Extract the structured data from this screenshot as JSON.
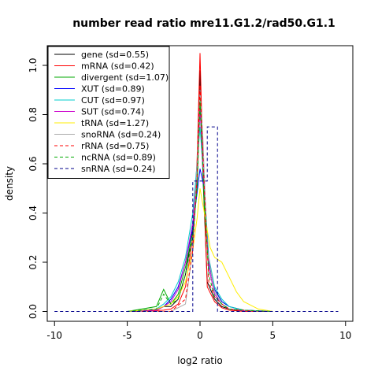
{
  "chart_data": {
    "type": "line",
    "title": "number read ratio mre11.G1.2/rad50.G1.1",
    "xlabel": "log2 ratio",
    "ylabel": "density",
    "xlim": [
      -10.5,
      10.5
    ],
    "ylim": [
      -0.04,
      1.08
    ],
    "x_ticks": [
      -10,
      -5,
      0,
      5,
      10
    ],
    "y_ticks": [
      0.0,
      0.2,
      0.4,
      0.6,
      0.8,
      1.0
    ],
    "x_tick_labels": [
      "-10",
      "-5",
      "0",
      "5",
      "10"
    ],
    "y_tick_labels": [
      "0.0",
      "0.2",
      "0.4",
      "0.6",
      "0.8",
      "1.0"
    ],
    "grid": false,
    "legend_position": "top-left",
    "series": [
      {
        "name": "gene (sd=0.55)",
        "color": "#000000",
        "dash": "solid",
        "x": [
          -4.5,
          -3.0,
          -2.5,
          -2.0,
          -1.5,
          -1.0,
          -0.5,
          -0.2,
          0.0,
          0.2,
          0.5,
          1.0,
          1.5,
          2.0,
          3.0,
          4.5
        ],
        "y": [
          0.0,
          0.005,
          0.02,
          0.02,
          0.05,
          0.15,
          0.33,
          0.55,
          0.98,
          0.55,
          0.12,
          0.05,
          0.02,
          0.01,
          0.0,
          0.0
        ]
      },
      {
        "name": "mRNA (sd=0.42)",
        "color": "#ff0000",
        "dash": "solid",
        "x": [
          -4.0,
          -2.5,
          -2.0,
          -1.5,
          -1.0,
          -0.5,
          -0.2,
          0.0,
          0.2,
          0.5,
          1.0,
          1.5,
          2.0,
          3.0,
          4.0
        ],
        "y": [
          0.0,
          0.005,
          0.01,
          0.03,
          0.1,
          0.3,
          0.62,
          1.05,
          0.6,
          0.1,
          0.04,
          0.015,
          0.005,
          0.0,
          0.0
        ]
      },
      {
        "name": "divergent (sd=1.07)",
        "color": "#00aa00",
        "dash": "solid",
        "x": [
          -5.0,
          -3.0,
          -2.5,
          -2.0,
          -1.5,
          -1.0,
          -0.5,
          -0.2,
          0.0,
          0.3,
          0.6,
          1.0,
          1.5,
          2.0,
          3.0,
          5.0
        ],
        "y": [
          0.0,
          0.02,
          0.09,
          0.03,
          0.07,
          0.18,
          0.32,
          0.5,
          0.88,
          0.42,
          0.2,
          0.09,
          0.04,
          0.02,
          0.005,
          0.0
        ]
      },
      {
        "name": "XUT (sd=0.89)",
        "color": "#0000ff",
        "dash": "solid",
        "x": [
          -5.0,
          -3.0,
          -2.5,
          -2.0,
          -1.5,
          -1.0,
          -0.5,
          0.0,
          0.3,
          0.6,
          1.0,
          1.5,
          2.0,
          3.0,
          5.0
        ],
        "y": [
          0.0,
          0.01,
          0.02,
          0.05,
          0.1,
          0.2,
          0.34,
          0.58,
          0.5,
          0.2,
          0.09,
          0.04,
          0.02,
          0.005,
          0.0
        ]
      },
      {
        "name": "CUT (sd=0.97)",
        "color": "#00cccc",
        "dash": "solid",
        "x": [
          -5.0,
          -3.0,
          -2.5,
          -2.0,
          -1.5,
          -1.0,
          -0.5,
          -0.2,
          0.0,
          0.3,
          0.6,
          1.0,
          1.5,
          2.0,
          3.0,
          5.0
        ],
        "y": [
          0.0,
          0.01,
          0.03,
          0.06,
          0.12,
          0.22,
          0.4,
          0.6,
          0.75,
          0.5,
          0.22,
          0.1,
          0.05,
          0.02,
          0.005,
          0.0
        ]
      },
      {
        "name": "SUT (sd=0.74)",
        "color": "#cc00cc",
        "dash": "solid",
        "x": [
          -5.0,
          -3.0,
          -2.5,
          -2.0,
          -1.5,
          -1.0,
          -0.5,
          -0.2,
          0.0,
          0.3,
          0.6,
          1.0,
          1.5,
          2.0,
          3.0,
          5.0
        ],
        "y": [
          0.0,
          0.005,
          0.02,
          0.04,
          0.09,
          0.2,
          0.36,
          0.56,
          0.82,
          0.48,
          0.18,
          0.07,
          0.03,
          0.01,
          0.003,
          0.0
        ]
      },
      {
        "name": "tRNA (sd=1.27)",
        "color": "#ffee00",
        "dash": "solid",
        "x": [
          -5.0,
          -3.0,
          -2.0,
          -1.5,
          -1.0,
          -0.5,
          -0.2,
          0.0,
          0.3,
          0.7,
          1.0,
          1.5,
          2.0,
          2.5,
          3.0,
          4.0,
          5.0
        ],
        "y": [
          0.0,
          0.01,
          0.03,
          0.06,
          0.12,
          0.25,
          0.38,
          0.5,
          0.4,
          0.26,
          0.22,
          0.2,
          0.14,
          0.08,
          0.04,
          0.01,
          0.0
        ]
      },
      {
        "name": "snoRNA (sd=0.24)",
        "color": "#aaaaaa",
        "dash": "solid",
        "x": [
          -4.0,
          -2.0,
          -1.0,
          -0.5,
          -0.2,
          0.0,
          0.2,
          0.5,
          1.0,
          1.5,
          2.0,
          4.0
        ],
        "y": [
          0.0,
          0.0,
          0.03,
          0.25,
          0.6,
          0.9,
          0.7,
          0.25,
          0.08,
          0.03,
          0.01,
          0.0
        ]
      },
      {
        "name": "rRNA (sd=0.75)",
        "color": "#ff0000",
        "dash": "dashed",
        "x": [
          -4.0,
          -2.0,
          -1.0,
          -0.5,
          -0.2,
          0.0,
          0.3,
          0.6,
          1.0,
          1.5,
          2.0,
          4.0
        ],
        "y": [
          0.0,
          0.0,
          0.05,
          0.25,
          0.55,
          0.92,
          0.5,
          0.12,
          0.06,
          0.03,
          0.01,
          0.0
        ]
      },
      {
        "name": "ncRNA (sd=0.89)",
        "color": "#00aa00",
        "dash": "dashed",
        "x": [
          -5.0,
          -3.0,
          -2.5,
          -2.0,
          -1.5,
          -1.0,
          -0.5,
          -0.2,
          0.0,
          0.3,
          0.6,
          1.0,
          1.5,
          2.0,
          3.0,
          5.0
        ],
        "y": [
          0.0,
          0.01,
          0.07,
          0.03,
          0.05,
          0.15,
          0.3,
          0.5,
          0.85,
          0.45,
          0.15,
          0.06,
          0.03,
          0.01,
          0.005,
          0.0
        ]
      },
      {
        "name": "snRNA (sd=0.24)",
        "color": "#00008b",
        "dash": "dashed",
        "x": [
          -10.0,
          -0.5,
          -0.5,
          0.5,
          0.5,
          1.2,
          1.2,
          9.5
        ],
        "y": [
          0.0,
          0.0,
          0.53,
          0.53,
          0.75,
          0.75,
          0.0,
          0.0
        ]
      }
    ]
  }
}
